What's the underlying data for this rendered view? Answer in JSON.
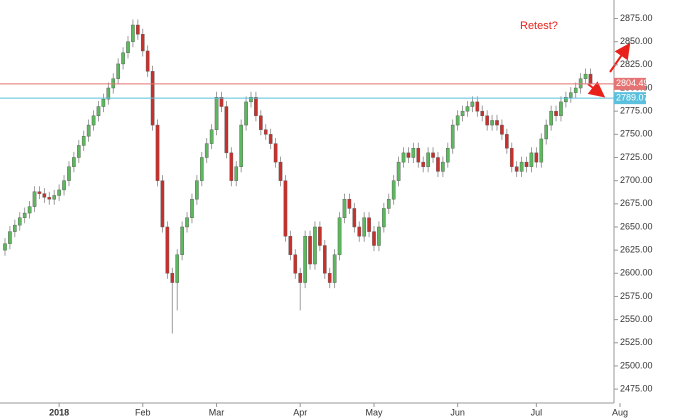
{
  "chart_data": {
    "type": "candlestick",
    "annotation": "Retest?",
    "up_color": "#5cb85c",
    "down_color": "#c9302c",
    "ylim": [
      2460,
      2895
    ],
    "yticks": [
      {
        "value": 2475,
        "label": "2475.00"
      },
      {
        "value": 2500,
        "label": "2500.00"
      },
      {
        "value": 2525,
        "label": "2525.00"
      },
      {
        "value": 2550,
        "label": "2550.00"
      },
      {
        "value": 2575,
        "label": "2575.00"
      },
      {
        "value": 2600,
        "label": "2600.00"
      },
      {
        "value": 2625,
        "label": "2625.00"
      },
      {
        "value": 2650,
        "label": "2650.00"
      },
      {
        "value": 2675,
        "label": "2675.00"
      },
      {
        "value": 2700,
        "label": "2700.00"
      },
      {
        "value": 2725,
        "label": "2725.00"
      },
      {
        "value": 2750,
        "label": "2750.00"
      },
      {
        "value": 2775,
        "label": "2775.00"
      },
      {
        "value": 2800,
        "label": "2800.00"
      },
      {
        "value": 2825,
        "label": "2825.00"
      },
      {
        "value": 2850,
        "label": "2850.00"
      },
      {
        "value": 2875,
        "label": "2875.00"
      }
    ],
    "hlines": [
      {
        "value": 2804.49,
        "color": "#e57373"
      },
      {
        "value": 2789.07,
        "color": "#5bc0de"
      }
    ],
    "categories": [
      null,
      null,
      null,
      null,
      null,
      null,
      null,
      null,
      null,
      null,
      null,
      "2018",
      null,
      null,
      null,
      null,
      null,
      null,
      null,
      null,
      null,
      null,
      null,
      null,
      null,
      null,
      null,
      null,
      "Feb",
      null,
      null,
      null,
      null,
      null,
      null,
      null,
      null,
      null,
      null,
      null,
      null,
      null,
      null,
      "Mar",
      null,
      null,
      null,
      null,
      null,
      null,
      null,
      null,
      null,
      null,
      null,
      null,
      null,
      null,
      null,
      null,
      "Apr",
      null,
      null,
      null,
      null,
      null,
      null,
      null,
      null,
      null,
      null,
      null,
      null,
      null,
      null,
      "May",
      null,
      null,
      null,
      null,
      null,
      null,
      null,
      null,
      null,
      null,
      null,
      null,
      null,
      null,
      null,
      null,
      "Jun",
      null,
      null,
      null,
      null,
      null,
      null,
      null,
      null,
      null,
      null,
      null,
      null,
      null,
      null,
      null,
      "Jul",
      null,
      null,
      null,
      null,
      null,
      null,
      null,
      null,
      null,
      null,
      null,
      null,
      null,
      null,
      null,
      null,
      "Aug"
    ],
    "open": [
      2625,
      2632,
      2645,
      2652,
      2660,
      2665,
      2672,
      2688,
      2686,
      2682,
      2680,
      2684,
      2690,
      2700,
      2715,
      2725,
      2738,
      2748,
      2760,
      2770,
      2780,
      2788,
      2800,
      2810,
      2826,
      2838,
      2850,
      2868,
      2858,
      2840,
      2818,
      2760,
      2700,
      2650,
      2600,
      2590,
      2620,
      2650,
      2660,
      2680,
      2700,
      2725,
      2740,
      2755,
      2790,
      2780,
      2730,
      2700,
      2715,
      2760,
      2785,
      2790,
      2770,
      2755,
      2750,
      2740,
      2720,
      2700,
      2640,
      2620,
      2600,
      2590,
      2640,
      2610,
      2650,
      2630,
      2600,
      2590,
      2620,
      2660,
      2680,
      2670,
      2650,
      2640,
      2660,
      2645,
      2630,
      2650,
      2670,
      2680,
      2700,
      2720,
      2730,
      2725,
      2735,
      2720,
      2715,
      2730,
      2725,
      2710,
      2720,
      2735,
      2760,
      2770,
      2775,
      2780,
      2785,
      2775,
      2770,
      2760,
      2765,
      2760,
      2750,
      2735,
      2715,
      2710,
      2720,
      2715,
      2730,
      2720,
      2745,
      2760,
      2775,
      2770,
      2785,
      2790,
      2795,
      2800,
      2810,
      2815,
      null,
      null,
      null,
      null,
      null,
      null
    ],
    "high": [
      2638,
      2651,
      2658,
      2666,
      2671,
      2678,
      2694,
      2694,
      2692,
      2688,
      2690,
      2696,
      2706,
      2721,
      2731,
      2744,
      2754,
      2766,
      2776,
      2786,
      2794,
      2806,
      2816,
      2832,
      2844,
      2856,
      2874,
      2874,
      2864,
      2846,
      2824,
      2766,
      2706,
      2656,
      2606,
      2626,
      2656,
      2666,
      2686,
      2706,
      2731,
      2746,
      2761,
      2796,
      2796,
      2786,
      2736,
      2721,
      2766,
      2791,
      2796,
      2796,
      2776,
      2761,
      2756,
      2746,
      2726,
      2706,
      2646,
      2626,
      2606,
      2646,
      2646,
      2656,
      2656,
      2636,
      2606,
      2626,
      2666,
      2686,
      2686,
      2676,
      2656,
      2666,
      2666,
      2651,
      2656,
      2676,
      2686,
      2706,
      2726,
      2736,
      2736,
      2741,
      2741,
      2726,
      2736,
      2736,
      2731,
      2726,
      2741,
      2766,
      2776,
      2781,
      2786,
      2791,
      2791,
      2781,
      2776,
      2771,
      2771,
      2766,
      2756,
      2741,
      2721,
      2726,
      2726,
      2736,
      2736,
      2751,
      2766,
      2781,
      2781,
      2791,
      2796,
      2801,
      2806,
      2816,
      2821,
      2821,
      null,
      null,
      null,
      null,
      null,
      null
    ],
    "low": [
      2619,
      2626,
      2639,
      2646,
      2654,
      2659,
      2666,
      2680,
      2676,
      2674,
      2674,
      2678,
      2684,
      2694,
      2709,
      2719,
      2732,
      2742,
      2754,
      2764,
      2774,
      2782,
      2794,
      2804,
      2820,
      2832,
      2844,
      2852,
      2834,
      2812,
      2754,
      2694,
      2644,
      2594,
      2535,
      2560,
      2614,
      2644,
      2654,
      2674,
      2694,
      2719,
      2734,
      2749,
      2774,
      2724,
      2694,
      2694,
      2709,
      2754,
      2779,
      2764,
      2749,
      2744,
      2734,
      2714,
      2694,
      2634,
      2614,
      2594,
      2560,
      2584,
      2604,
      2604,
      2624,
      2594,
      2584,
      2584,
      2614,
      2654,
      2664,
      2644,
      2634,
      2634,
      2639,
      2624,
      2624,
      2644,
      2664,
      2674,
      2694,
      2714,
      2719,
      2719,
      2714,
      2709,
      2709,
      2719,
      2704,
      2704,
      2714,
      2729,
      2754,
      2764,
      2769,
      2774,
      2769,
      2764,
      2754,
      2754,
      2754,
      2744,
      2729,
      2709,
      2704,
      2704,
      2709,
      2709,
      2714,
      2714,
      2739,
      2754,
      2764,
      2764,
      2779,
      2784,
      2789,
      2794,
      2804,
      2809,
      null,
      null,
      null,
      null,
      null,
      null
    ],
    "close": [
      2632,
      2645,
      2652,
      2660,
      2665,
      2672,
      2688,
      2686,
      2682,
      2680,
      2684,
      2690,
      2700,
      2715,
      2725,
      2738,
      2748,
      2760,
      2770,
      2780,
      2788,
      2800,
      2810,
      2826,
      2838,
      2850,
      2868,
      2858,
      2840,
      2818,
      2760,
      2700,
      2650,
      2600,
      2590,
      2620,
      2650,
      2660,
      2680,
      2700,
      2725,
      2740,
      2755,
      2790,
      2780,
      2730,
      2700,
      2715,
      2760,
      2785,
      2790,
      2770,
      2755,
      2750,
      2740,
      2720,
      2700,
      2640,
      2620,
      2600,
      2590,
      2640,
      2610,
      2650,
      2630,
      2600,
      2590,
      2620,
      2660,
      2680,
      2670,
      2650,
      2640,
      2660,
      2645,
      2630,
      2650,
      2670,
      2680,
      2700,
      2720,
      2730,
      2725,
      2735,
      2720,
      2715,
      2730,
      2725,
      2710,
      2720,
      2735,
      2760,
      2770,
      2775,
      2780,
      2785,
      2775,
      2770,
      2760,
      2765,
      2760,
      2750,
      2735,
      2715,
      2710,
      2720,
      2715,
      2730,
      2720,
      2745,
      2760,
      2775,
      2770,
      2785,
      2790,
      2795,
      2800,
      2810,
      2815,
      2805,
      null,
      null,
      null,
      null,
      null,
      null
    ]
  }
}
